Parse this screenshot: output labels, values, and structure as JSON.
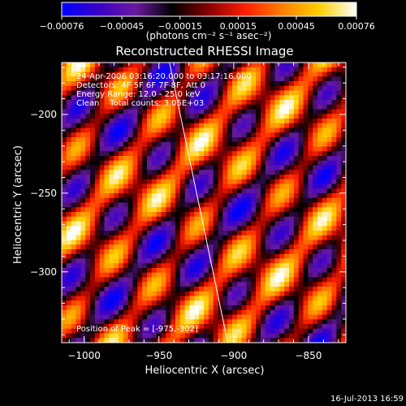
{
  "chart_data": {
    "type": "heatmap",
    "title": "Reconstructed RHESSI Image",
    "xlabel": "Heliocentric X (arcsec)",
    "ylabel": "Heliocentric Y (arcsec)",
    "xlim": [
      -1015,
      -825
    ],
    "ylim": [
      -345,
      -167
    ],
    "x_ticks": [
      -1000,
      -950,
      -900,
      -850
    ],
    "x_tick_labels": [
      "−1000",
      "−950",
      "−900",
      "−850"
    ],
    "y_ticks": [
      -200,
      -250,
      -300
    ],
    "y_tick_labels": [
      "−200",
      "−250",
      "−300"
    ],
    "colorbar": {
      "range": [
        -0.00076,
        0.00076
      ],
      "ticks": [
        -0.00076,
        -0.00045,
        -0.00015,
        0.00015,
        0.00045,
        0.00076
      ],
      "tick_labels": [
        "−0.00076",
        "−0.00045",
        "−0.00015",
        "0.00015",
        "0.00045",
        "0.00076"
      ],
      "units": "(photons cm⁻² s⁻¹ asec⁻²)",
      "colors": [
        "#0000ff",
        "#3a00c8",
        "#6a1aa0",
        "#000000",
        "#8a0000",
        "#ff2000",
        "#ff8000",
        "#ffd000",
        "#ffffff"
      ]
    },
    "annotations": {
      "time": "24-Apr-2006 03:16:20.000 to 03:17:16.000",
      "detectors": "Detectors: 4F 5F 6F 7F 8F, Att 0",
      "energy": "Energy Range: 12.0 - 25.0 keV",
      "clean": "Clean    Total counts: 3.05E+03",
      "peak": "Position of Peak = [-975,-302]"
    },
    "limb_line": {
      "x": [
        -943,
        -904
      ],
      "y": [
        -167,
        -345
      ]
    },
    "footer": "16-Jul-2013 16:59"
  }
}
